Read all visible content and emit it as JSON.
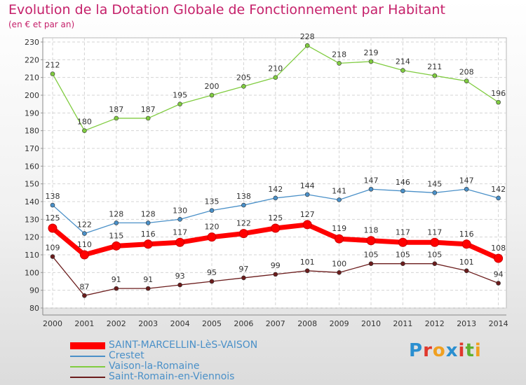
{
  "header": {
    "title": "Evolution de la Dotation Globale de Fonctionnement par Habitant",
    "subtitle": "(en € et par an)"
  },
  "brand": {
    "logo_text": "Proxiti"
  },
  "chart_data": {
    "type": "line",
    "title": "Evolution de la Dotation Globale de Fonctionnement par Habitant",
    "subtitle": "(en € et par an)",
    "xlabel": "",
    "ylabel": "",
    "ylim": [
      80,
      230
    ],
    "yticks": [
      80,
      90,
      100,
      110,
      120,
      130,
      140,
      150,
      160,
      170,
      180,
      190,
      200,
      210,
      220,
      230
    ],
    "grid": true,
    "legend_position": "bottom-left",
    "x": [
      "2000",
      "2001",
      "2002",
      "2003",
      "2004",
      "2005",
      "2006",
      "2007",
      "2008",
      "2009",
      "2010",
      "2011",
      "2012",
      "2013",
      "2014"
    ],
    "series": [
      {
        "name": "SAINT-MARCELLIN-LèS-VAISON",
        "color": "#ff0000",
        "values": [
          125,
          110,
          115,
          116,
          117,
          120,
          122,
          125,
          127,
          119,
          118,
          117,
          117,
          116,
          108
        ]
      },
      {
        "name": "Crestet",
        "color": "#4a90c8",
        "values": [
          138,
          122,
          128,
          128,
          130,
          135,
          138,
          142,
          144,
          141,
          147,
          146,
          145,
          147,
          142
        ]
      },
      {
        "name": "Vaison-la-Romaine",
        "color": "#80cc40",
        "values": [
          212,
          180,
          187,
          187,
          195,
          200,
          205,
          210,
          228,
          218,
          219,
          214,
          211,
          208,
          196
        ]
      },
      {
        "name": "Saint-Romain-en-Viennois",
        "color": "#6b1c1c",
        "values": [
          109,
          87,
          91,
          91,
          93,
          95,
          97,
          99,
          101,
          100,
          105,
          105,
          105,
          101,
          94
        ]
      }
    ]
  }
}
